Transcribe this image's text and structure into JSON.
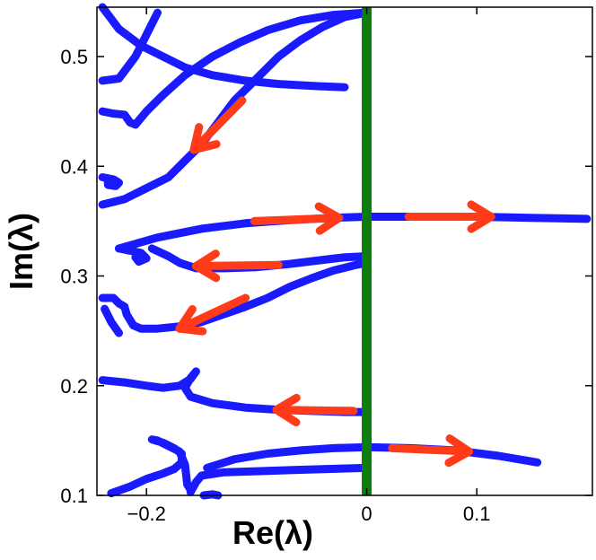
{
  "chart_data": {
    "type": "line",
    "title": "",
    "xlabel": "Re(λ)",
    "ylabel": "Im(λ)",
    "xlim": [
      -0.245,
      0.205
    ],
    "ylim": [
      0.1,
      0.545
    ],
    "grid": false,
    "x_ticks": [
      -0.2,
      0,
      0.1
    ],
    "x_tick_labels": [
      "−0.2",
      "0",
      "0.1"
    ],
    "y_ticks": [
      0.1,
      0.2,
      0.3,
      0.4,
      0.5
    ],
    "y_tick_labels": [
      "0.1",
      "0.2",
      "0.3",
      "0.4",
      "0.5"
    ],
    "colors": {
      "curve": "#1a1aff",
      "arrow": "#ff3b1a",
      "marker": "#0c7c0c",
      "axes": "#000000"
    },
    "marker_line": {
      "x": 0
    },
    "series": [
      {
        "values": [
          [
            -0.24,
            0.545
          ],
          [
            -0.225,
            0.525
          ],
          [
            -0.205,
            0.51
          ],
          [
            -0.185,
            0.5
          ],
          [
            -0.165,
            0.49
          ],
          [
            -0.14,
            0.483
          ],
          [
            -0.11,
            0.478
          ],
          [
            -0.08,
            0.475
          ],
          [
            -0.045,
            0.473
          ],
          [
            -0.02,
            0.472
          ]
        ]
      },
      {
        "values": [
          [
            -0.24,
            0.478
          ],
          [
            -0.225,
            0.48
          ],
          [
            -0.21,
            0.5
          ],
          [
            -0.2,
            0.52
          ],
          [
            -0.19,
            0.54
          ]
        ]
      },
      {
        "values": [
          [
            -0.24,
            0.45
          ],
          [
            -0.23,
            0.448
          ],
          [
            -0.22,
            0.447
          ],
          [
            -0.215,
            0.44
          ],
          [
            -0.21,
            0.438
          ],
          [
            -0.2,
            0.45
          ],
          [
            -0.185,
            0.465
          ],
          [
            -0.165,
            0.483
          ],
          [
            -0.14,
            0.5
          ],
          [
            -0.115,
            0.513
          ],
          [
            -0.09,
            0.524
          ],
          [
            -0.06,
            0.533
          ],
          [
            -0.03,
            0.538
          ],
          [
            0.0,
            0.54
          ]
        ]
      },
      {
        "values": [
          [
            -0.24,
            0.365
          ],
          [
            -0.22,
            0.37
          ],
          [
            -0.2,
            0.38
          ],
          [
            -0.18,
            0.39
          ],
          [
            -0.165,
            0.405
          ],
          [
            -0.15,
            0.42
          ],
          [
            -0.135,
            0.44
          ],
          [
            -0.12,
            0.46
          ],
          [
            -0.1,
            0.48
          ],
          [
            -0.08,
            0.5
          ],
          [
            -0.06,
            0.515
          ],
          [
            -0.04,
            0.527
          ],
          [
            -0.02,
            0.536
          ],
          [
            0.0,
            0.54
          ]
        ]
      },
      {
        "values": [
          [
            -0.24,
            0.39
          ],
          [
            -0.23,
            0.388
          ],
          [
            -0.225,
            0.385
          ],
          [
            -0.228,
            0.382
          ],
          [
            -0.235,
            0.383
          ],
          [
            -0.235,
            0.388
          ]
        ]
      },
      {
        "values": [
          [
            -0.225,
            0.325
          ],
          [
            -0.19,
            0.335
          ],
          [
            -0.15,
            0.343
          ],
          [
            -0.11,
            0.348
          ],
          [
            -0.07,
            0.351
          ],
          [
            -0.03,
            0.353
          ],
          [
            0.0,
            0.354
          ],
          [
            0.05,
            0.354
          ],
          [
            0.1,
            0.354
          ],
          [
            0.15,
            0.353
          ],
          [
            0.2,
            0.352
          ]
        ]
      },
      {
        "values": [
          [
            -0.225,
            0.325
          ],
          [
            -0.215,
            0.323
          ],
          [
            -0.205,
            0.321
          ],
          [
            -0.2,
            0.316
          ],
          [
            -0.207,
            0.313
          ],
          [
            -0.21,
            0.317
          ]
        ]
      },
      {
        "values": [
          [
            -0.195,
            0.325
          ],
          [
            -0.18,
            0.318
          ],
          [
            -0.17,
            0.312
          ],
          [
            -0.155,
            0.307
          ],
          [
            -0.13,
            0.307
          ],
          [
            -0.1,
            0.308
          ],
          [
            -0.07,
            0.311
          ],
          [
            -0.045,
            0.314
          ],
          [
            -0.02,
            0.317
          ],
          [
            0.0,
            0.318
          ]
        ]
      },
      {
        "values": [
          [
            -0.24,
            0.28
          ],
          [
            -0.23,
            0.28
          ],
          [
            -0.225,
            0.275
          ],
          [
            -0.22,
            0.272
          ],
          [
            -0.218,
            0.265
          ],
          [
            -0.212,
            0.255
          ],
          [
            -0.205,
            0.252
          ],
          [
            -0.19,
            0.252
          ],
          [
            -0.17,
            0.254
          ],
          [
            -0.15,
            0.258
          ],
          [
            -0.13,
            0.265
          ],
          [
            -0.11,
            0.272
          ],
          [
            -0.09,
            0.28
          ],
          [
            -0.07,
            0.29
          ],
          [
            -0.05,
            0.298
          ],
          [
            -0.03,
            0.305
          ],
          [
            -0.01,
            0.31
          ],
          [
            0.0,
            0.312
          ]
        ]
      },
      {
        "values": [
          [
            -0.238,
            0.27
          ],
          [
            -0.232,
            0.258
          ],
          [
            -0.225,
            0.248
          ]
        ]
      },
      {
        "values": [
          [
            -0.24,
            0.205
          ],
          [
            -0.22,
            0.203
          ],
          [
            -0.2,
            0.2
          ],
          [
            -0.185,
            0.198
          ],
          [
            -0.17,
            0.2
          ],
          [
            -0.16,
            0.206
          ],
          [
            -0.155,
            0.213
          ],
          [
            -0.16,
            0.207
          ],
          [
            -0.165,
            0.198
          ],
          [
            -0.16,
            0.19
          ],
          [
            -0.14,
            0.184
          ],
          [
            -0.11,
            0.18
          ],
          [
            -0.08,
            0.178
          ],
          [
            -0.05,
            0.177
          ],
          [
            -0.02,
            0.176
          ],
          [
            0.0,
            0.176
          ]
        ]
      },
      {
        "values": [
          [
            -0.232,
            0.102
          ],
          [
            -0.215,
            0.108
          ],
          [
            -0.2,
            0.115
          ],
          [
            -0.185,
            0.12
          ],
          [
            -0.175,
            0.124
          ],
          [
            -0.168,
            0.13
          ],
          [
            -0.168,
            0.138
          ],
          [
            -0.175,
            0.143
          ],
          [
            -0.185,
            0.148
          ],
          [
            -0.195,
            0.151
          ],
          [
            -0.19,
            0.15
          ],
          [
            -0.18,
            0.145
          ],
          [
            -0.17,
            0.14
          ],
          [
            -0.165,
            0.128
          ],
          [
            -0.163,
            0.11
          ],
          [
            -0.16,
            0.105
          ]
        ]
      },
      {
        "values": [
          [
            -0.145,
            0.125
          ],
          [
            -0.12,
            0.133
          ],
          [
            -0.09,
            0.138
          ],
          [
            -0.06,
            0.141
          ],
          [
            -0.03,
            0.143
          ],
          [
            0.0,
            0.144
          ],
          [
            0.04,
            0.143
          ],
          [
            0.08,
            0.141
          ],
          [
            0.12,
            0.136
          ],
          [
            0.155,
            0.13
          ]
        ]
      },
      {
        "values": [
          [
            -0.16,
            0.103
          ],
          [
            -0.155,
            0.112
          ],
          [
            -0.15,
            0.118
          ],
          [
            -0.13,
            0.121
          ],
          [
            -0.1,
            0.122
          ],
          [
            -0.07,
            0.123
          ],
          [
            -0.04,
            0.124
          ],
          [
            0.0,
            0.125
          ]
        ]
      },
      {
        "values": [
          [
            -0.148,
            0.1
          ],
          [
            -0.14,
            0.101
          ],
          [
            -0.135,
            0.1
          ]
        ]
      }
    ],
    "arrows": [
      {
        "from": [
          -0.113,
          0.46
        ],
        "to": [
          -0.157,
          0.415
        ]
      },
      {
        "from": [
          -0.102,
          0.35
        ],
        "to": [
          -0.025,
          0.353
        ]
      },
      {
        "from": [
          0.038,
          0.354
        ],
        "to": [
          0.113,
          0.354
        ]
      },
      {
        "from": [
          -0.08,
          0.31
        ],
        "to": [
          -0.155,
          0.309
        ]
      },
      {
        "from": [
          -0.11,
          0.28
        ],
        "to": [
          -0.17,
          0.252
        ]
      },
      {
        "from": [
          -0.012,
          0.177
        ],
        "to": [
          -0.082,
          0.178
        ]
      },
      {
        "from": [
          0.023,
          0.143
        ],
        "to": [
          0.093,
          0.14
        ]
      }
    ]
  }
}
